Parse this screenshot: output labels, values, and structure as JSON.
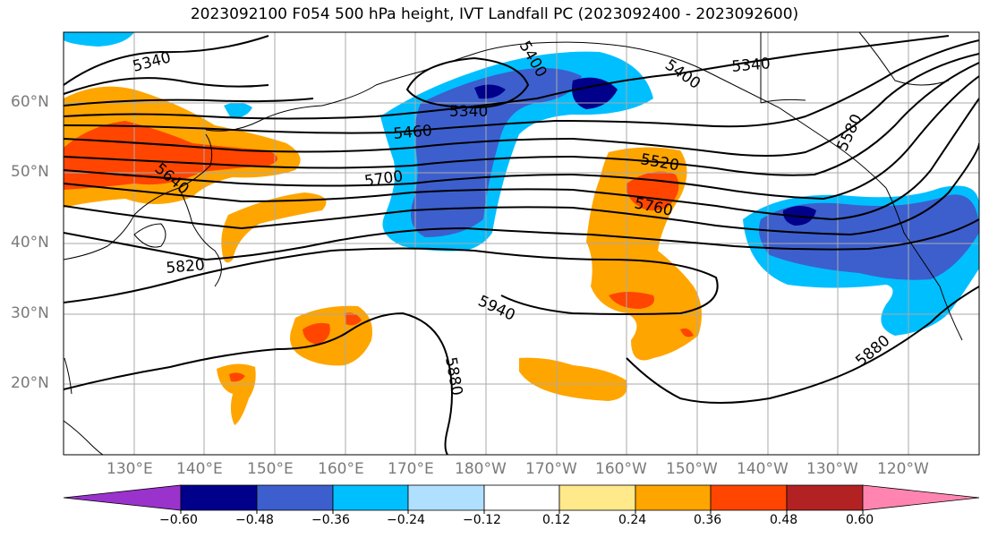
{
  "title": "2023092100 F054 500 hPa height, IVT Landfall PC (2023092400 - 2023092600)",
  "lat_labels": [
    "60°N",
    "50°N",
    "40°N",
    "30°N",
    "20°N"
  ],
  "lon_labels": [
    "130°E",
    "140°E",
    "150°E",
    "160°E",
    "170°E",
    "180°W",
    "170°W",
    "160°W",
    "150°W",
    "140°W",
    "130°W",
    "120°W"
  ],
  "contour_labels": [
    "5340",
    "5400",
    "5340",
    "5400",
    "5340",
    "5460",
    "5520",
    "5580",
    "5640",
    "5700",
    "5760",
    "5820",
    "5940",
    "5880",
    "5880"
  ],
  "colorbar": {
    "tick_labels": [
      "−0.60",
      "−0.48",
      "−0.36",
      "−0.24",
      "−0.12",
      "0.12",
      "0.24",
      "0.36",
      "0.48",
      "0.60"
    ],
    "colors": [
      "#9933cc",
      "#00008b",
      "#3c5fcd",
      "#00bfff",
      "#b0e0ff",
      "#ffffff",
      "#ffe98a",
      "#ffa500",
      "#ff4500",
      "#b22222",
      "#ff85b0"
    ]
  }
}
